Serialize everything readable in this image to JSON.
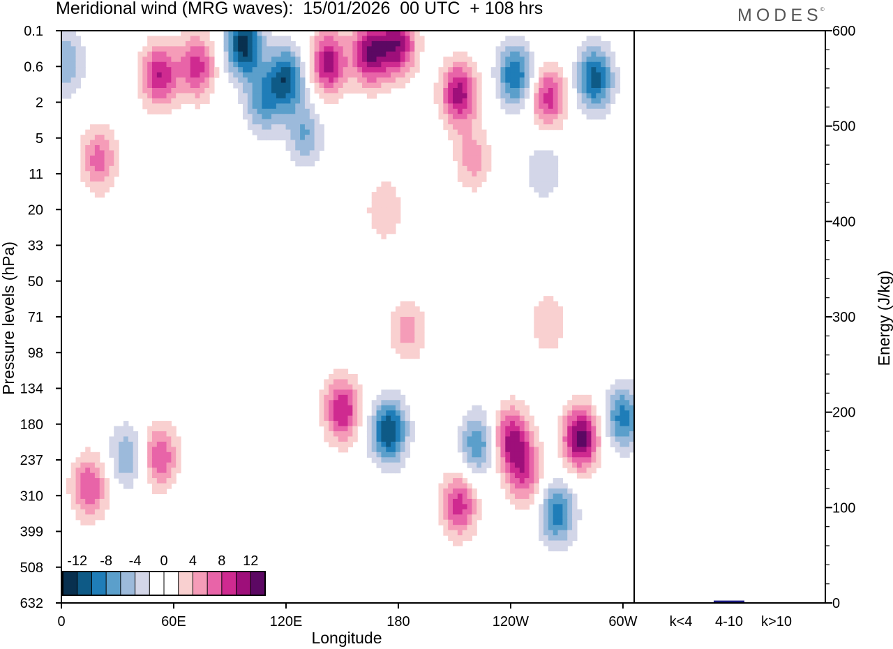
{
  "header": {
    "title": "Meridional wind (MRG waves):  15/01/2026  00 UTC  + 108 hrs",
    "logo": "MODES"
  },
  "colors": {
    "scale": [
      "#08304f",
      "#0e5a86",
      "#1f7db8",
      "#5b9fcb",
      "#9cbadb",
      "#d3d6e8",
      "#ffffff",
      "#ffffff",
      "#f9d0d0",
      "#f59cb8",
      "#e864a8",
      "#cf2a90",
      "#9e0f7a",
      "#5c0863"
    ],
    "bar": "#1a1a80"
  },
  "chart_data": [
    {
      "type": "heatmap",
      "title": "Meridional wind (MRG waves):  15/01/2026  00 UTC  + 108 hrs",
      "xlabel": "Longitude",
      "ylabel": "Pressure levels (hPa)",
      "x_ticks": [
        "0",
        "60E",
        "120E",
        "180",
        "120W",
        "60W"
      ],
      "y_levels": [
        "0.1",
        "0.6",
        "2",
        "5",
        "11",
        "20",
        "33",
        "50",
        "71",
        "98",
        "134",
        "180",
        "237",
        "310",
        "399",
        "508",
        "632"
      ],
      "colorbar": {
        "labels": [
          "-12",
          "-8",
          "-4",
          "0",
          "4",
          "8",
          "12"
        ],
        "levels": [
          -14,
          -12,
          -10,
          -8,
          -6,
          -4,
          -2,
          0,
          2,
          4,
          6,
          8,
          10,
          12,
          14
        ]
      },
      "features": [
        {
          "lon": 195,
          "lev": 0.2,
          "v": -13
        },
        {
          "lon": 240,
          "lev": 0.9,
          "v": -11
        },
        {
          "lon": 215,
          "lev": 2.0,
          "v": -7
        },
        {
          "lon": 145,
          "lev": 0.6,
          "v": 9
        },
        {
          "lon": 105,
          "lev": 0.8,
          "v": 10
        },
        {
          "lon": 285,
          "lev": 0.5,
          "v": 11
        },
        {
          "lon": 330,
          "lev": 0.3,
          "v": 12
        },
        {
          "lon": 360,
          "lev": 0.2,
          "v": 11
        },
        {
          "lon": 425,
          "lev": 1.5,
          "v": 11
        },
        {
          "lon": 485,
          "lev": 0.8,
          "v": -10
        },
        {
          "lon": 570,
          "lev": 0.9,
          "v": -11
        },
        {
          "lon": 520,
          "lev": 1.7,
          "v": 9
        },
        {
          "lon": 5,
          "lev": 0.5,
          "v": -6
        },
        {
          "lon": 40,
          "lev": 8,
          "v": 7
        },
        {
          "lon": 260,
          "lev": 4.5,
          "v": -6
        },
        {
          "lon": 440,
          "lev": 8,
          "v": 5
        },
        {
          "lon": 515,
          "lev": 10,
          "v": -4
        },
        {
          "lon": 345,
          "lev": 20,
          "v": 4
        },
        {
          "lon": 370,
          "lev": 80,
          "v": 5
        },
        {
          "lon": 520,
          "lev": 75,
          "v": 4
        },
        {
          "lon": 30,
          "lev": 290,
          "v": 8
        },
        {
          "lon": 105,
          "lev": 230,
          "v": 8
        },
        {
          "lon": 300,
          "lev": 160,
          "v": 10
        },
        {
          "lon": 350,
          "lev": 190,
          "v": -12
        },
        {
          "lon": 425,
          "lev": 330,
          "v": 9
        },
        {
          "lon": 445,
          "lev": 210,
          "v": -8
        },
        {
          "lon": 480,
          "lev": 200,
          "v": 10
        },
        {
          "lon": 495,
          "lev": 260,
          "v": 8
        },
        {
          "lon": 530,
          "lev": 350,
          "v": -9
        },
        {
          "lon": 555,
          "lev": 200,
          "v": 13
        },
        {
          "lon": 600,
          "lev": 170,
          "v": -9
        },
        {
          "lon": 70,
          "lev": 230,
          "v": -6
        }
      ]
    },
    {
      "type": "bar",
      "categories": [
        "k<4",
        "4-10",
        "k>10"
      ],
      "values": [
        0.4,
        2.5,
        0.3
      ],
      "ylabel": "Energy (J/kg)",
      "ylim": [
        0,
        600
      ],
      "yticks": [
        0,
        100,
        200,
        300,
        400,
        500,
        600
      ]
    }
  ]
}
